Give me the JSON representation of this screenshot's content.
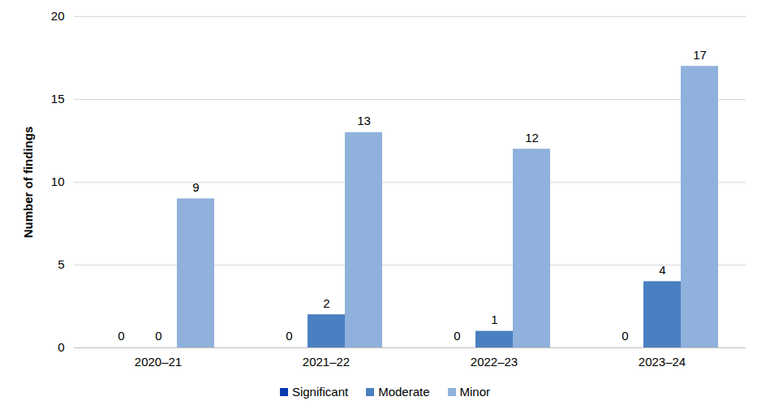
{
  "chart_data": {
    "type": "bar",
    "y_label": "Number of findings",
    "categories": [
      "2020–21",
      "2021–22",
      "2022–23",
      "2023–24"
    ],
    "series": [
      {
        "name": "Significant",
        "color": "#0a3cb0",
        "values": [
          0,
          0,
          0,
          0
        ]
      },
      {
        "name": "Moderate",
        "color": "#4a7fc1",
        "values": [
          0,
          2,
          1,
          4
        ]
      },
      {
        "name": "Minor",
        "color": "#8fb1dc",
        "values": [
          9,
          13,
          12,
          17
        ]
      }
    ],
    "ylim": [
      0,
      20
    ],
    "yticks": [
      0,
      5,
      10,
      15,
      20
    ],
    "grid": true,
    "data_labels": true,
    "legend": "bottom"
  }
}
